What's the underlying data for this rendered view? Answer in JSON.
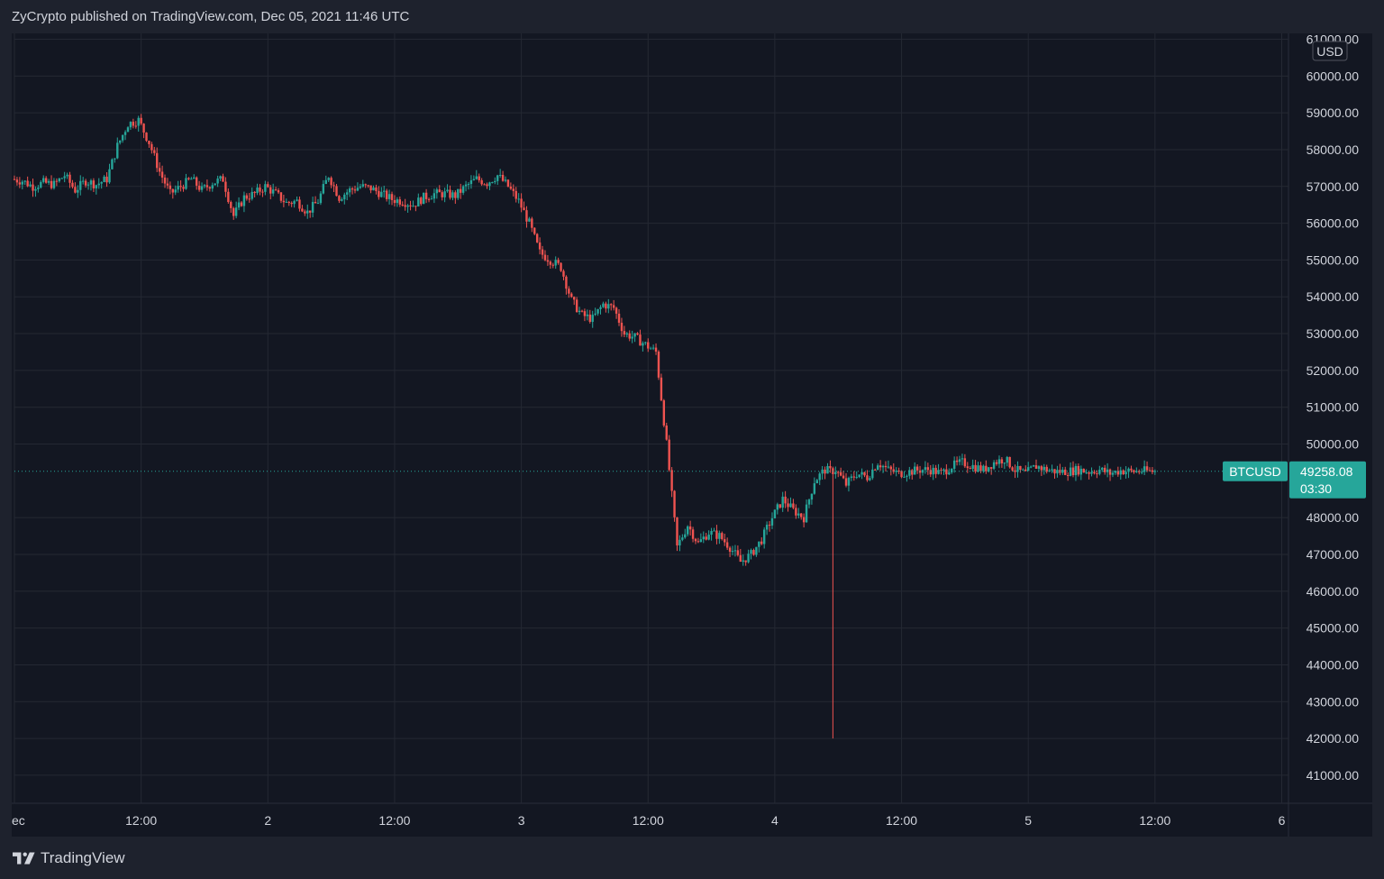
{
  "header": {
    "publisher": "ZyCrypto published on TradingView.com, Dec 05, 2021 11:46 UTC"
  },
  "footer": {
    "brand": "TradingView"
  },
  "colors": {
    "background": "#131722",
    "frame": "#1e222d",
    "grid": "#242833",
    "up": "#26a69a",
    "down": "#ef5350",
    "price_label": "#26a69a",
    "text": "#d1d4dc"
  },
  "chart_data": {
    "type": "line",
    "symbol": "BTCUSD",
    "currency": "USD",
    "ylim": [
      40500,
      61000
    ],
    "y_ticks": [
      61000,
      60000,
      59000,
      58000,
      57000,
      56000,
      55000,
      54000,
      53000,
      52000,
      51000,
      50000,
      48000,
      47000,
      46000,
      45000,
      44000,
      43000,
      42000,
      41000
    ],
    "y_tick_labels": [
      "61000.00",
      "60000.00",
      "59000.00",
      "58000.00",
      "57000.00",
      "56000.00",
      "55000.00",
      "54000.00",
      "53000.00",
      "52000.00",
      "51000.00",
      "50000.00",
      "48000.00",
      "47000.00",
      "46000.00",
      "45000.00",
      "44000.00",
      "43000.00",
      "42000.00",
      "41000.00"
    ],
    "xlim": [
      0,
      121
    ],
    "x_ticks": [
      0,
      12,
      24,
      36,
      48,
      60,
      72,
      84,
      96,
      108,
      120
    ],
    "x_tick_labels": [
      "ec",
      "12:00",
      "2",
      "12:00",
      "3",
      "12:00",
      "4",
      "12:00",
      "5",
      "12:00",
      "6"
    ],
    "series": [
      {
        "hours": [
          0,
          1,
          2,
          3,
          4,
          5,
          6,
          7,
          8,
          9,
          10,
          11,
          12,
          13,
          14,
          15,
          16,
          17,
          18,
          19,
          20,
          21,
          22,
          23,
          24,
          25,
          26,
          27,
          28,
          29,
          30,
          31,
          32,
          33,
          34,
          35,
          36,
          37,
          38,
          39,
          40,
          41,
          42,
          43,
          44,
          45,
          46,
          47,
          48,
          49,
          50,
          51,
          52,
          53,
          54,
          55,
          56,
          57,
          58,
          59,
          60,
          61,
          62,
          63,
          64,
          65,
          66,
          67,
          68,
          69,
          70,
          71,
          72,
          73,
          74,
          75,
          76,
          77,
          77.5,
          78,
          79,
          80,
          81,
          82,
          83,
          84,
          85,
          86,
          87,
          88,
          89,
          90,
          91,
          92,
          93,
          94,
          95,
          96,
          97,
          98,
          99,
          100,
          101,
          102,
          103,
          104,
          105,
          106,
          107,
          108
        ],
        "prices": [
          57200,
          57150,
          57000,
          57100,
          57050,
          57300,
          56900,
          57150,
          57050,
          57200,
          58100,
          58700,
          58800,
          58200,
          57400,
          56800,
          57000,
          57200,
          56900,
          57100,
          57200,
          56200,
          56700,
          56800,
          57000,
          56800,
          56550,
          56600,
          56300,
          56600,
          57300,
          56700,
          56900,
          57000,
          56950,
          56800,
          56650,
          56600,
          56500,
          56700,
          56800,
          56800,
          56750,
          57000,
          57200,
          57100,
          57300,
          57000,
          56600,
          56000,
          55200,
          55000,
          54800,
          53900,
          53500,
          53400,
          53800,
          53700,
          53000,
          52900,
          52700,
          52500,
          50000,
          47200,
          47800,
          47300,
          47600,
          47500,
          47200,
          46800,
          47000,
          47400,
          48000,
          48500,
          48200,
          48000,
          49000,
          49300,
          49250,
          49300,
          48900,
          49200,
          49100,
          49500,
          49300,
          49200,
          49250,
          49300,
          49300,
          49200,
          49400,
          49500,
          49400,
          49300,
          49500,
          49600,
          49300,
          49200,
          49400,
          49300,
          49250,
          49258,
          49300,
          49250,
          49300,
          49200,
          49280,
          49250,
          49270,
          49258.08
        ]
      }
    ],
    "last_price": 49258.08,
    "last_price_label": "49258.08",
    "countdown": "03:30",
    "low_wick": {
      "hour": 77.5,
      "price": 42000
    },
    "grid": true
  }
}
